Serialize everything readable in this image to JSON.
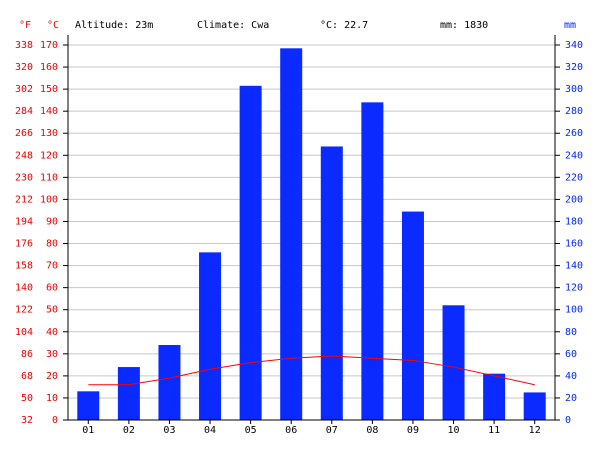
{
  "chart_data": {
    "type": "bar",
    "annotations": [
      "Altitude: 23m",
      "Climate: Cwa",
      "°C: 22.7",
      "mm: 1830"
    ],
    "y3label": "°F",
    "ylabel": "°C",
    "y2label": "mm",
    "categories": [
      "01",
      "02",
      "03",
      "04",
      "05",
      "06",
      "07",
      "08",
      "09",
      "10",
      "11",
      "12"
    ],
    "series": [
      {
        "type": "bar",
        "axis": "y2",
        "color": "#0a2aff",
        "values": [
          26,
          48,
          68,
          152,
          303,
          337,
          248,
          288,
          189,
          104,
          42,
          25
        ]
      },
      {
        "type": "line",
        "color": "#ff0000",
        "values": [
          16,
          16,
          19,
          23,
          26,
          28,
          29,
          28,
          27,
          24,
          20,
          16
        ]
      }
    ],
    "ylim": [
      0,
      170
    ],
    "yticks": [
      0,
      10,
      20,
      30,
      40,
      50,
      60,
      70,
      80,
      90,
      100,
      110,
      120,
      130,
      140,
      150,
      160,
      170
    ],
    "y2lim": [
      0,
      340
    ],
    "y2ticks": [
      0,
      20,
      40,
      60,
      80,
      100,
      120,
      140,
      160,
      180,
      200,
      220,
      240,
      260,
      280,
      300,
      320,
      340
    ],
    "y3lim": [
      32,
      338
    ],
    "y3ticks": [
      32,
      50,
      68,
      86,
      104,
      122,
      140,
      158,
      176,
      194,
      212,
      230,
      248,
      266,
      284,
      302,
      320,
      338
    ],
    "grid": true
  }
}
